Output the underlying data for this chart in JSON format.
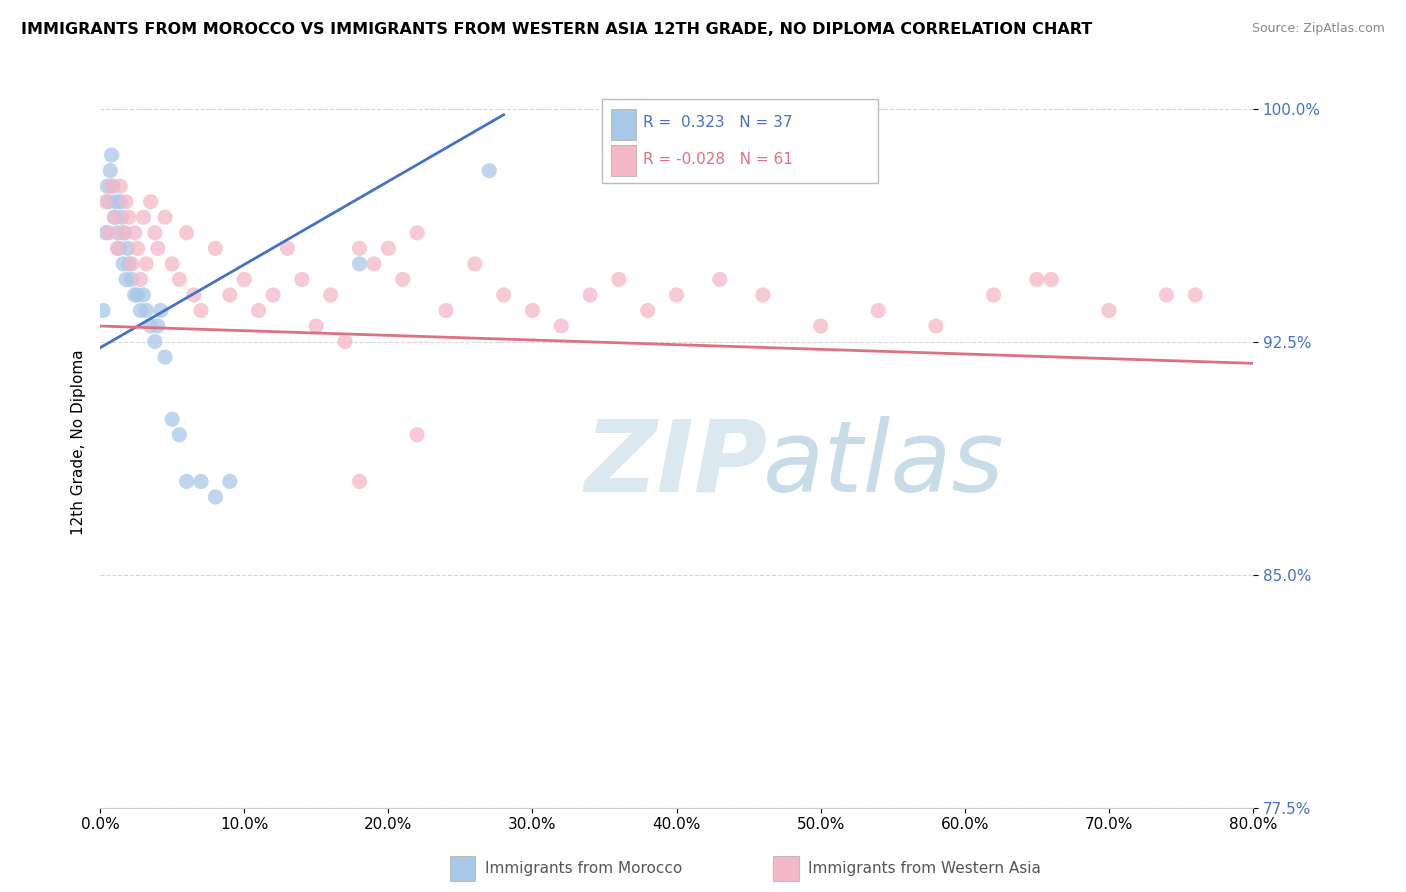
{
  "title": "IMMIGRANTS FROM MOROCCO VS IMMIGRANTS FROM WESTERN ASIA 12TH GRADE, NO DIPLOMA CORRELATION CHART",
  "source": "Source: ZipAtlas.com",
  "ylabel": "12th Grade, No Diploma",
  "legend_label1": "Immigrants from Morocco",
  "legend_label2": "Immigrants from Western Asia",
  "R1": 0.323,
  "N1": 37,
  "R2": -0.028,
  "N2": 61,
  "color1": "#a8c8e8",
  "color2": "#f4b8c8",
  "line_color1": "#4472c4",
  "line_color2": "#e07080",
  "background_color": "#ffffff",
  "xlim": [
    0.0,
    0.8
  ],
  "ylim": [
    0.865,
    1.01
  ],
  "y_ticks": [
    0.775,
    0.85,
    0.925,
    1.0
  ],
  "x_ticks": [
    0.0,
    0.1,
    0.2,
    0.3,
    0.4,
    0.5,
    0.6,
    0.7,
    0.8
  ],
  "morocco_x": [
    0.002,
    0.004,
    0.005,
    0.006,
    0.007,
    0.008,
    0.009,
    0.01,
    0.011,
    0.012,
    0.013,
    0.014,
    0.015,
    0.016,
    0.017,
    0.018,
    0.019,
    0.02,
    0.022,
    0.024,
    0.026,
    0.028,
    0.03,
    0.032,
    0.035,
    0.038,
    0.04,
    0.042,
    0.045,
    0.05,
    0.055,
    0.06,
    0.07,
    0.08,
    0.09,
    0.18,
    0.27
  ],
  "morocco_y": [
    0.935,
    0.96,
    0.975,
    0.97,
    0.98,
    0.985,
    0.975,
    0.965,
    0.97,
    0.96,
    0.955,
    0.97,
    0.965,
    0.95,
    0.96,
    0.945,
    0.955,
    0.95,
    0.945,
    0.94,
    0.94,
    0.935,
    0.94,
    0.935,
    0.93,
    0.925,
    0.93,
    0.935,
    0.92,
    0.9,
    0.895,
    0.88,
    0.88,
    0.875,
    0.88,
    0.95,
    0.98
  ],
  "western_asia_x": [
    0.004,
    0.006,
    0.008,
    0.01,
    0.012,
    0.014,
    0.016,
    0.018,
    0.02,
    0.022,
    0.024,
    0.026,
    0.028,
    0.03,
    0.032,
    0.035,
    0.038,
    0.04,
    0.045,
    0.05,
    0.055,
    0.06,
    0.065,
    0.07,
    0.08,
    0.09,
    0.1,
    0.11,
    0.12,
    0.13,
    0.14,
    0.15,
    0.16,
    0.17,
    0.18,
    0.19,
    0.2,
    0.21,
    0.22,
    0.24,
    0.26,
    0.28,
    0.3,
    0.32,
    0.34,
    0.36,
    0.38,
    0.4,
    0.43,
    0.46,
    0.5,
    0.54,
    0.58,
    0.62,
    0.66,
    0.7,
    0.74,
    0.76,
    0.18,
    0.22,
    0.65
  ],
  "western_asia_y": [
    0.97,
    0.96,
    0.975,
    0.965,
    0.955,
    0.975,
    0.96,
    0.97,
    0.965,
    0.95,
    0.96,
    0.955,
    0.945,
    0.965,
    0.95,
    0.97,
    0.96,
    0.955,
    0.965,
    0.95,
    0.945,
    0.96,
    0.94,
    0.935,
    0.955,
    0.94,
    0.945,
    0.935,
    0.94,
    0.955,
    0.945,
    0.93,
    0.94,
    0.925,
    0.955,
    0.95,
    0.955,
    0.945,
    0.96,
    0.935,
    0.95,
    0.94,
    0.935,
    0.93,
    0.94,
    0.945,
    0.935,
    0.94,
    0.945,
    0.94,
    0.93,
    0.935,
    0.93,
    0.94,
    0.945,
    0.935,
    0.94,
    0.94,
    0.88,
    0.895,
    0.945
  ]
}
